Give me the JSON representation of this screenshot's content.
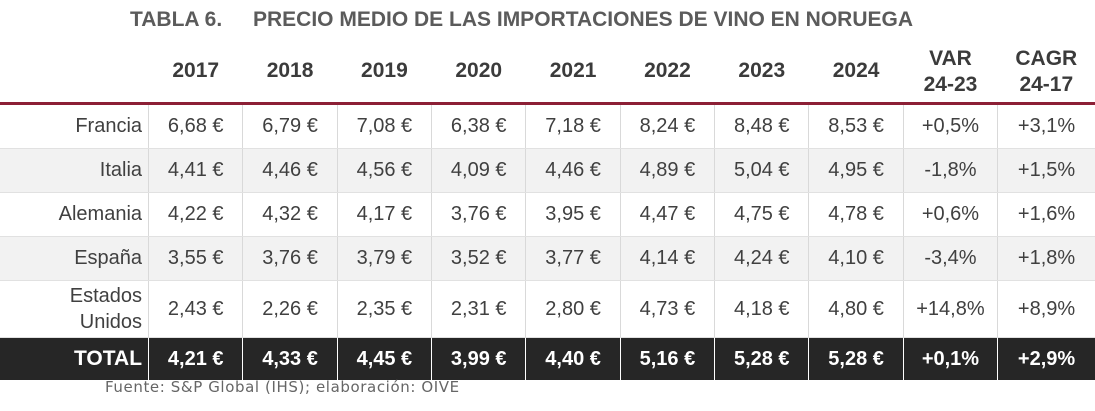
{
  "title": {
    "number": "TABLA 6.",
    "text": "PRECIO MEDIO DE LAS IMPORTACIONES DE VINO EN NORUEGA"
  },
  "source": "Fuente: S&P Global (IHS); elaboración: OIVE",
  "columns": [
    "2017",
    "2018",
    "2019",
    "2020",
    "2021",
    "2022",
    "2023",
    "2024"
  ],
  "var_header": [
    "VAR",
    "24-23"
  ],
  "cagr_header": [
    "CAGR",
    "24-17"
  ],
  "rows": [
    {
      "label": "Francia",
      "label_lines": [
        "Francia"
      ],
      "values": [
        "6,68 €",
        "6,79 €",
        "7,08 €",
        "6,38 €",
        "7,18 €",
        "8,24 €",
        "8,48 €",
        "8,53 €"
      ],
      "var": "+0,5%",
      "cagr": "+3,1%"
    },
    {
      "label": "Italia",
      "label_lines": [
        "Italia"
      ],
      "values": [
        "4,41 €",
        "4,46 €",
        "4,56 €",
        "4,09 €",
        "4,46 €",
        "4,89 €",
        "5,04 €",
        "4,95 €"
      ],
      "var": "-1,8%",
      "cagr": "+1,5%"
    },
    {
      "label": "Alemania",
      "label_lines": [
        "Alemania"
      ],
      "values": [
        "4,22 €",
        "4,32 €",
        "4,17 €",
        "3,76 €",
        "3,95 €",
        "4,47 €",
        "4,75 €",
        "4,78 €"
      ],
      "var": "+0,6%",
      "cagr": "+1,6%"
    },
    {
      "label": "España",
      "label_lines": [
        "España"
      ],
      "values": [
        "3,55 €",
        "3,76 €",
        "3,79 €",
        "3,52 €",
        "3,77 €",
        "4,14 €",
        "4,24 €",
        "4,10 €"
      ],
      "var": "-3,4%",
      "cagr": "+1,8%"
    },
    {
      "label": "Estados Unidos",
      "label_lines": [
        "Estados",
        "Unidos"
      ],
      "values": [
        "2,43 €",
        "2,26 €",
        "2,35 €",
        "2,31 €",
        "2,80 €",
        "4,73 €",
        "4,18 €",
        "4,80 €"
      ],
      "var": "+14,8%",
      "cagr": "+8,9%"
    }
  ],
  "total": {
    "label": "TOTAL",
    "values": [
      "4,21 €",
      "4,33 €",
      "4,45 €",
      "3,99 €",
      "4,40 €",
      "5,16 €",
      "5,28 €",
      "5,28 €"
    ],
    "var": "+0,1%",
    "cagr": "+2,9%"
  },
  "colors": {
    "header_rule": "#8c1f35",
    "total_bg": "#262626",
    "stripe": "#f2f2f2"
  },
  "chart_data": {
    "type": "table",
    "title": "PRECIO MEDIO DE LAS IMPORTACIONES DE VINO EN NORUEGA",
    "categories": [
      "2017",
      "2018",
      "2019",
      "2020",
      "2021",
      "2022",
      "2023",
      "2024"
    ],
    "series": [
      {
        "name": "Francia",
        "values": [
          6.68,
          6.79,
          7.08,
          6.38,
          7.18,
          8.24,
          8.48,
          8.53
        ],
        "var_24_23": 0.5,
        "cagr_24_17": 3.1
      },
      {
        "name": "Italia",
        "values": [
          4.41,
          4.46,
          4.56,
          4.09,
          4.46,
          4.89,
          5.04,
          4.95
        ],
        "var_24_23": -1.8,
        "cagr_24_17": 1.5
      },
      {
        "name": "Alemania",
        "values": [
          4.22,
          4.32,
          4.17,
          3.76,
          3.95,
          4.47,
          4.75,
          4.78
        ],
        "var_24_23": 0.6,
        "cagr_24_17": 1.6
      },
      {
        "name": "España",
        "values": [
          3.55,
          3.76,
          3.79,
          3.52,
          3.77,
          4.14,
          4.24,
          4.1
        ],
        "var_24_23": -3.4,
        "cagr_24_17": 1.8
      },
      {
        "name": "Estados Unidos",
        "values": [
          2.43,
          2.26,
          2.35,
          2.31,
          2.8,
          4.73,
          4.18,
          4.8
        ],
        "var_24_23": 14.8,
        "cagr_24_17": 8.9
      },
      {
        "name": "TOTAL",
        "values": [
          4.21,
          4.33,
          4.45,
          3.99,
          4.4,
          5.16,
          5.28,
          5.28
        ],
        "var_24_23": 0.1,
        "cagr_24_17": 2.9
      }
    ]
  }
}
